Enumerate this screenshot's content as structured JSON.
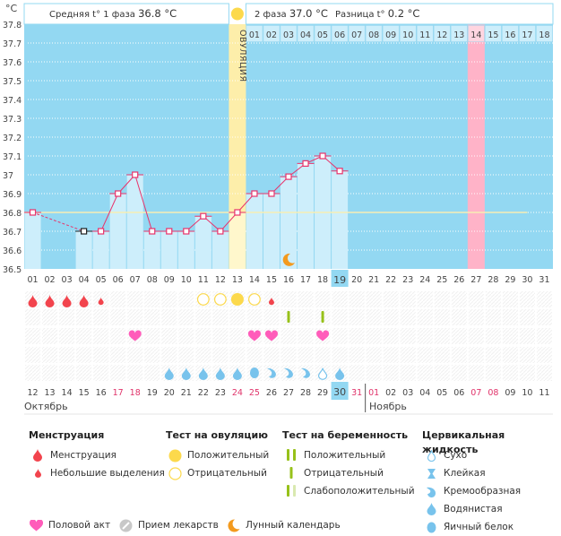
{
  "header": {
    "unit": "°C",
    "phase1_label": "Средняя t° 1 фаза",
    "phase1_value": "36.8 °C",
    "phase2_label": "2 фаза",
    "phase2_value": "37.0 °C",
    "diff_label": "Разница t°",
    "diff_value": "0.2 °C",
    "ovulation_label": "ОВУЛЯЦИЯ"
  },
  "colors": {
    "chart_bg": "#93d8f2",
    "bar_fill": "#cdeefb",
    "ovulation": "#fdeeaa",
    "expected_period": "#ffb3c8",
    "line": "#e8336b",
    "coverline": "#f7eeb4",
    "sun": "#fcd94c",
    "menstruation": "#f2444d",
    "heart": "#ff5cba",
    "pregnancy_test": "#97c11a",
    "cervical": "#78c3ec",
    "moon": "#f39a1e",
    "weekend": "#e0336a"
  },
  "chart_data": {
    "type": "line",
    "title": "",
    "xlabel": "",
    "ylabel": "°C",
    "ylim": [
      36.5,
      37.8
    ],
    "yticks": [
      "37.8",
      "37.7",
      "37.6",
      "37.5",
      "37.4",
      "37.3",
      "37.2",
      "37.1",
      "37",
      "36.9",
      "36.8",
      "36.7",
      "36.6",
      "36.5"
    ],
    "cycle_days": [
      "01",
      "02",
      "03",
      "04",
      "05",
      "06",
      "07",
      "08",
      "09",
      "10",
      "11",
      "12",
      "13",
      "14",
      "15",
      "16",
      "17",
      "18",
      "19",
      "20",
      "21",
      "22",
      "23",
      "24",
      "25",
      "26",
      "27",
      "28",
      "29",
      "30",
      "31"
    ],
    "series": [
      {
        "name": "BBT",
        "values": [
          36.8,
          null,
          null,
          36.7,
          36.7,
          36.9,
          37.0,
          36.7,
          36.7,
          36.7,
          36.78,
          36.7,
          36.8,
          36.9,
          36.9,
          36.99,
          37.06,
          37.1,
          37.02,
          null,
          null,
          null,
          null,
          null,
          null,
          null,
          null,
          null,
          null,
          null,
          null
        ]
      }
    ],
    "special_point_day": 4,
    "coverline": 36.8,
    "coverline_end_day": 30,
    "ovulation_day": 13,
    "current_day": 19,
    "expected_period_day": 27,
    "moon_day": 16,
    "luteal_days": [
      "01",
      "02",
      "03",
      "04",
      "05",
      "06",
      "07",
      "08",
      "09",
      "10",
      "11",
      "12",
      "13",
      "14",
      "15",
      "16",
      "17",
      "18"
    ],
    "luteal_highlight_day": 14,
    "dates": [
      "12",
      "13",
      "14",
      "15",
      "16",
      "17",
      "18",
      "19",
      "20",
      "21",
      "22",
      "23",
      "24",
      "25",
      "26",
      "27",
      "28",
      "29",
      "30",
      "31",
      "01",
      "02",
      "03",
      "04",
      "05",
      "06",
      "07",
      "08",
      "09",
      "10",
      "11"
    ],
    "weekend_indices": [
      5,
      6,
      12,
      13,
      19,
      20,
      26,
      27
    ],
    "today_index": 18,
    "month1": "Октябрь",
    "month2": "Ноябрь",
    "month2_start_index": 20,
    "markers": {
      "menstruation": [
        {
          "day": 1,
          "type": "heavy"
        },
        {
          "day": 2,
          "type": "heavy"
        },
        {
          "day": 3,
          "type": "heavy"
        },
        {
          "day": 4,
          "type": "heavy"
        },
        {
          "day": 5,
          "type": "light"
        },
        {
          "day": 15,
          "type": "light"
        }
      ],
      "ovulation_test": [
        {
          "day": 11,
          "type": "negative"
        },
        {
          "day": 12,
          "type": "negative"
        },
        {
          "day": 13,
          "type": "positive"
        },
        {
          "day": 14,
          "type": "negative"
        }
      ],
      "pregnancy_test": [
        {
          "day": 16,
          "type": "negative"
        },
        {
          "day": 18,
          "type": "negative"
        }
      ],
      "intercourse": [
        7,
        14,
        15,
        18
      ],
      "cervical_fluid": [
        {
          "day": 9,
          "type": "watery"
        },
        {
          "day": 10,
          "type": "watery"
        },
        {
          "day": 11,
          "type": "watery"
        },
        {
          "day": 12,
          "type": "watery"
        },
        {
          "day": 13,
          "type": "watery"
        },
        {
          "day": 14,
          "type": "egg-white"
        },
        {
          "day": 15,
          "type": "creamy"
        },
        {
          "day": 16,
          "type": "creamy"
        },
        {
          "day": 17,
          "type": "creamy"
        },
        {
          "day": 18,
          "type": "dry"
        },
        {
          "day": 19,
          "type": "watery"
        }
      ]
    }
  },
  "legend": {
    "menstruation": {
      "title": "Менструация",
      "items": [
        "Менструация",
        "Небольшие выделения"
      ]
    },
    "ovulation_test": {
      "title": "Тест на овуляцию",
      "items": [
        "Положительный",
        "Отрицательный"
      ]
    },
    "pregnancy_test": {
      "title": "Тест на беременность",
      "items": [
        "Положительный",
        "Отрицательный",
        "Слабоположительный"
      ]
    },
    "cervical_fluid": {
      "title": "Цервикальная жидкость",
      "items": [
        "Сухо",
        "Клейкая",
        "Кремообразная",
        "Водянистая",
        "Яичный белок"
      ]
    },
    "bottom": [
      "Половой акт",
      "Прием лекарств",
      "Лунный календарь"
    ]
  }
}
